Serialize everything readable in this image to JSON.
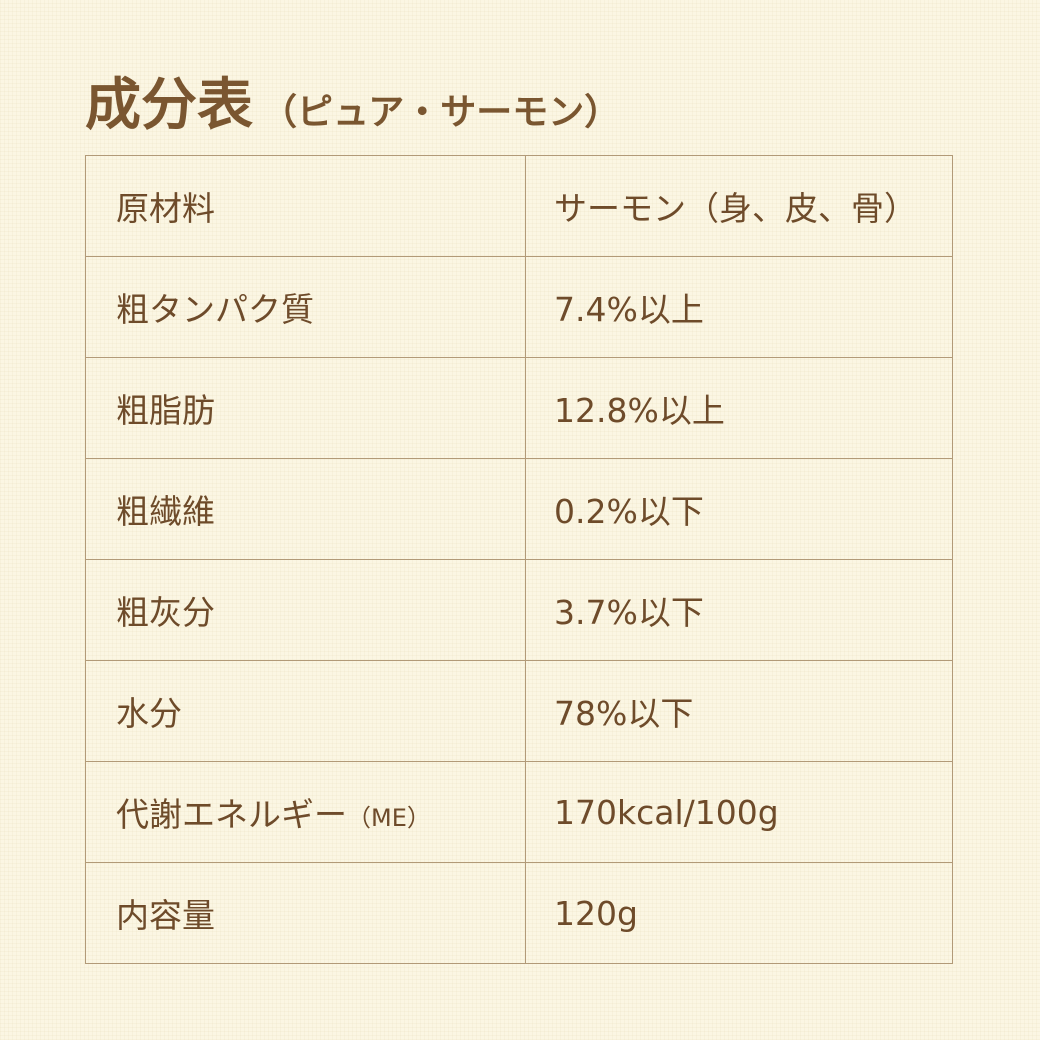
{
  "header": {
    "title": "成分表",
    "subtitle": "（ピュア・サーモン）"
  },
  "table": {
    "rows": [
      {
        "label": "原材料",
        "value": "サーモン（身、皮、骨）"
      },
      {
        "label": "粗タンパク質",
        "value": "7.4%以上"
      },
      {
        "label": "粗脂肪",
        "value": "12.8%以上"
      },
      {
        "label": "粗繊維",
        "value": "0.2%以下"
      },
      {
        "label": "粗灰分",
        "value": "3.7%以下"
      },
      {
        "label": "水分",
        "value": "78%以下"
      },
      {
        "label": "代謝エネルギー",
        "label_note": "（ME）",
        "value": "170kcal/100g"
      },
      {
        "label": "内容量",
        "value": "120g"
      }
    ]
  }
}
